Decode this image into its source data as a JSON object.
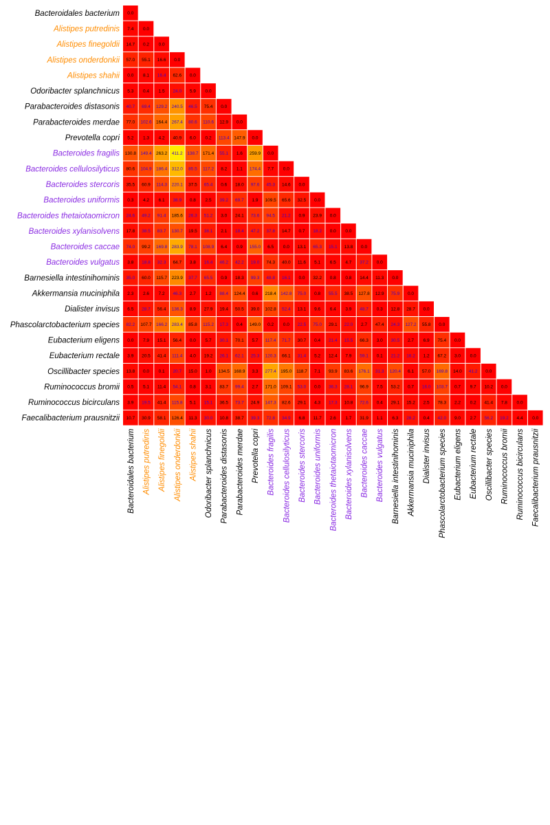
{
  "chart_data": {
    "type": "heatmap",
    "layout": "lower-triangular",
    "color_scale": {
      "low": "#ff0000",
      "mid": "#ff8000",
      "high": "#ffee00",
      "max_value": 411.2
    },
    "label_colors": {
      "default": "#000000",
      "alistipes": "#ff8c00",
      "bacteroides": "#8a2be2",
      "value_dark": "#000000",
      "value_highlight": "#3d00cc"
    },
    "labels": [
      {
        "text": "Bacteroidales bacterium",
        "group": "default"
      },
      {
        "text": "Alistipes putredinis",
        "group": "alistipes"
      },
      {
        "text": "Alistipes finegoldii",
        "group": "alistipes"
      },
      {
        "text": "Alistipes onderdonkii",
        "group": "alistipes"
      },
      {
        "text": "Alistipes shahii",
        "group": "alistipes"
      },
      {
        "text": "Odoribacter splanchnicus",
        "group": "default"
      },
      {
        "text": "Parabacteroides distasonis",
        "group": "default"
      },
      {
        "text": "Parabacteroides merdae",
        "group": "default"
      },
      {
        "text": "Prevotella copri",
        "group": "default"
      },
      {
        "text": "Bacteroides fragilis",
        "group": "bacteroides"
      },
      {
        "text": "Bacteroides cellulosilyticus",
        "group": "bacteroides"
      },
      {
        "text": "Bacteroides stercoris",
        "group": "bacteroides"
      },
      {
        "text": "Bacteroides uniformis",
        "group": "bacteroides"
      },
      {
        "text": "Bacteroides thetaiotaomicron",
        "group": "bacteroides"
      },
      {
        "text": "Bacteroides xylanisolvens",
        "group": "bacteroides"
      },
      {
        "text": "Bacteroides caccae",
        "group": "bacteroides"
      },
      {
        "text": "Bacteroides vulgatus",
        "group": "bacteroides"
      },
      {
        "text": "Barnesiella intestinihominis",
        "group": "default"
      },
      {
        "text": "Akkermansia muciniphila",
        "group": "default"
      },
      {
        "text": "Dialister invisus",
        "group": "default"
      },
      {
        "text": "Phascolarctobacterium species",
        "group": "default"
      },
      {
        "text": "Eubacterium eligens",
        "group": "default"
      },
      {
        "text": "Eubacterium rectale",
        "group": "default"
      },
      {
        "text": "Oscillibacter species",
        "group": "default"
      },
      {
        "text": "Ruminococcus bromii",
        "group": "default"
      },
      {
        "text": "Ruminococcus bicirculans",
        "group": "default"
      },
      {
        "text": "Faecalibacterium prausnitzii",
        "group": "default"
      }
    ],
    "rows": [
      [
        "0.0"
      ],
      [
        "7.4",
        "0.0"
      ],
      [
        "14.7",
        "0.2",
        "0.0"
      ],
      [
        "57.0",
        "55.1",
        "16.6",
        "0.0"
      ],
      [
        "0.0",
        "8.1",
        "16.4",
        "62.6",
        "0.0"
      ],
      [
        "5.3",
        "0.4",
        "1.5",
        "24.0",
        "5.9",
        "0.0"
      ],
      [
        "40.7",
        "69.4",
        "129.2",
        "240.5",
        "46.5",
        "75.4",
        "0.0"
      ],
      [
        "77.0",
        "102.6",
        "164.4",
        "267.4",
        "80.6",
        "110.6",
        "12.9",
        "0.0"
      ],
      [
        "5.2",
        "1.3",
        "4.2",
        "40.9",
        "6.0",
        "0.2",
        "113.4",
        "147.9",
        "0.0"
      ],
      [
        "130.8",
        "149.4",
        "263.2",
        "411.2",
        "138.7",
        "171.4",
        "55.1",
        "1.6",
        "259.9",
        "0.0"
      ],
      [
        "80.6",
        "104.9",
        "186.4",
        "312.0",
        "85.5",
        "117.2",
        "8.2",
        "1.1",
        "174.4",
        "7.7",
        "0.0"
      ],
      [
        "35.5",
        "60.9",
        "114.3",
        "220.1",
        "37.5",
        "65.4",
        "0.6",
        "18.0",
        "97.6",
        "45.3",
        "14.6",
        "0.0"
      ],
      [
        "0.3",
        "4.2",
        "6.1",
        "38.9",
        "0.8",
        "2.5",
        "39.2",
        "69.7",
        "1.9",
        "109.5",
        "65.6",
        "32.5",
        "0.0"
      ],
      [
        "24.6",
        "49.2",
        "91.4",
        "185.6",
        "26.3",
        "51.2",
        "3.0",
        "24.1",
        "73.6",
        "94.5",
        "21.2",
        "0.9",
        "23.9",
        "0.0"
      ],
      [
        "17.8",
        "38.5",
        "83.7",
        "130.7",
        "19.5",
        "38.1",
        "2.1",
        "18.4",
        "47.2",
        "37.8",
        "14.7",
        "0.7",
        "18.2",
        "0.0",
        "0.0"
      ],
      [
        "74.0",
        "99.2",
        "169.8",
        "283.9",
        "78.1",
        "108.9",
        "6.4",
        "0.9",
        "155.0",
        "6.5",
        "0.0",
        "13.1",
        "65.3",
        "15.1",
        "13.8",
        "0.0"
      ],
      [
        "3.8",
        "18.8",
        "32.3",
        "64.7",
        "3.8",
        "16.4",
        "46.2",
        "42.2",
        "19.0",
        "74.3",
        "40.0",
        "11.6",
        "5.1",
        "6.5",
        "4.7",
        "37.2",
        "0.0"
      ],
      [
        "35.0",
        "60.0",
        "115.7",
        "223.9",
        "37.7",
        "65.5",
        "0.9",
        "18.3",
        "99.3",
        "48.8",
        "16.1",
        "0.0",
        "32.2",
        "0.8",
        "0.8",
        "14.4",
        "11.3",
        "0.0"
      ],
      [
        "2.3",
        "2.6",
        "7.2",
        "46.3",
        "2.7",
        "1.2",
        "88.4",
        "124.4",
        "0.6",
        "218.4",
        "142.8",
        "75.0",
        "0.8",
        "55.5",
        "38.5",
        "127.8",
        "12.9",
        "75.9",
        "0.0"
      ],
      [
        "6.5",
        "28.7",
        "56.4",
        "136.3",
        "8.9",
        "27.9",
        "19.4",
        "50.5",
        "39.0",
        "102.8",
        "52.4",
        "13.1",
        "9.6",
        "6.4",
        "3.9",
        "48.7",
        "0.3",
        "12.8",
        "28.7",
        "0.0"
      ],
      [
        "82.2",
        "107.7",
        "166.2",
        "283.4",
        "85.8",
        "115.2",
        "17.3",
        "0.4",
        "149.0",
        "0.2",
        "0.0",
        "22.5",
        "75.0",
        "29.1",
        "22.0",
        "2.7",
        "47.4",
        "24.3",
        "127.2",
        "55.8",
        "0.0"
      ],
      [
        "0.0",
        "7.9",
        "15.1",
        "56.4",
        "0.0",
        "5.7",
        "30.1",
        "70.1",
        "5.7",
        "117.4",
        "71.7",
        "30.7",
        "0.4",
        "21.4",
        "15.5",
        "66.3",
        "3.0",
        "30.5",
        "2.7",
        "6.9",
        "75.4",
        "0.0"
      ],
      [
        "3.9",
        "20.5",
        "41.4",
        "111.4",
        "4.0",
        "19.2",
        "26.1",
        "62.1",
        "25.3",
        "120.3",
        "66.1",
        "31.4",
        "5.2",
        "12.4",
        "7.9",
        "59.1",
        "0.1",
        "21.2",
        "16.2",
        "1.2",
        "67.2",
        "3.0",
        "0.0"
      ],
      [
        "13.8",
        "0.0",
        "0.1",
        "20.7",
        "15.0",
        "1.0",
        "134.5",
        "168.9",
        "3.3",
        "277.4",
        "195.0",
        "118.7",
        "7.1",
        "93.9",
        "83.6",
        "176.1",
        "31.3",
        "120.4",
        "6.1",
        "57.0",
        "169.8",
        "14.0",
        "41.2",
        "0.0"
      ],
      [
        "0.5",
        "5.1",
        "11.4",
        "54.1",
        "0.8",
        "3.1",
        "83.7",
        "99.4",
        "2.7",
        "171.0",
        "109.1",
        "53.0",
        "0.0",
        "36.3",
        "28.1",
        "96.9",
        "7.5",
        "53.2",
        "0.7",
        "16.0",
        "103.7",
        "0.7",
        "9.7",
        "10.2",
        "0.0"
      ],
      [
        "3.9",
        "19.5",
        "41.4",
        "115.8",
        "5.1",
        "15.1",
        "36.5",
        "73.7",
        "24.9",
        "147.3",
        "82.6",
        "29.1",
        "4.3",
        "17.3",
        "10.8",
        "72.6",
        "0.4",
        "29.1",
        "15.2",
        "2.5",
        "78.3",
        "2.2",
        "0.2",
        "41.4",
        "7.8",
        "0.0"
      ],
      [
        "10.7",
        "30.9",
        "58.1",
        "126.4",
        "11.3",
        "30.0",
        "10.8",
        "38.7",
        "39.3",
        "72.8",
        "34.9",
        "6.8",
        "11.7",
        "2.6",
        "1.7",
        "31.9",
        "1.1",
        "6.3",
        "28.2",
        "0.4",
        "42.0",
        "9.0",
        "2.7",
        "56.2",
        "19.2",
        "4.4",
        "0.0"
      ]
    ]
  }
}
